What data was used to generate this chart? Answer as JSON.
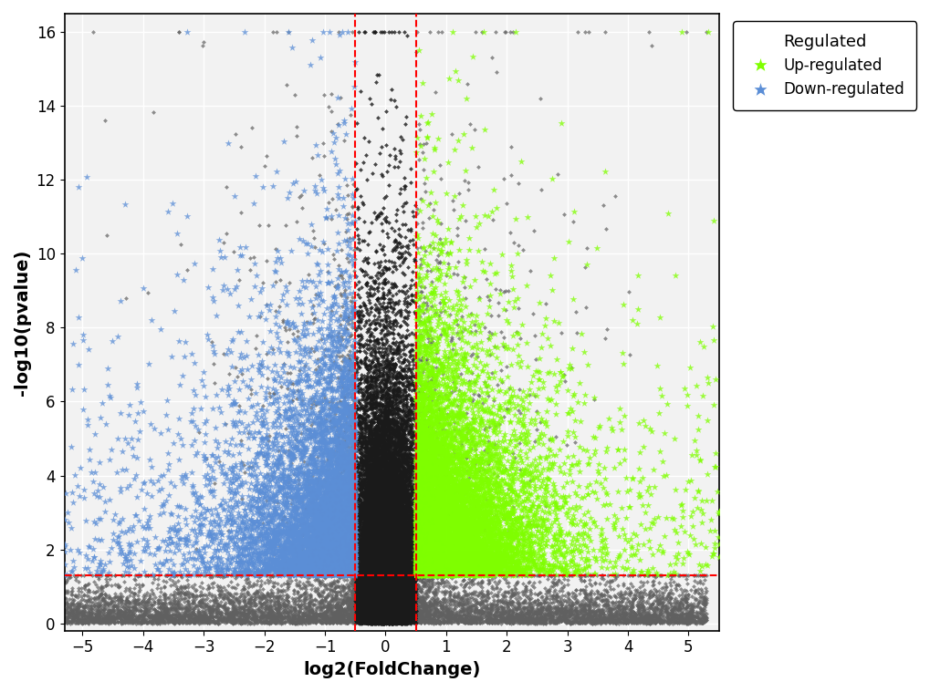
{
  "title": "",
  "xlabel": "log2(FoldChange)",
  "ylabel": "-log10(pvalue)",
  "xlim": [
    -5.3,
    5.5
  ],
  "ylim": [
    -0.2,
    16.5
  ],
  "xticks": [
    -5,
    -4,
    -3,
    -2,
    -1,
    0,
    1,
    2,
    3,
    4,
    5
  ],
  "yticks": [
    0,
    2,
    4,
    6,
    8,
    10,
    12,
    14,
    16
  ],
  "vline1": -0.5,
  "vline2": 0.5,
  "hline": 1.3,
  "up_color": "#7FFF00",
  "down_color": "#5B8ED6",
  "nonsig_color": "#1a1a1a",
  "nonsig_color2": "#606060",
  "legend_title": "Regulated",
  "legend_up": "Up-regulated",
  "legend_down": "Down-regulated",
  "background_color": "#f2f2f2",
  "grid_color": "white",
  "figsize": [
    10.2,
    7.59
  ],
  "dpi": 100
}
